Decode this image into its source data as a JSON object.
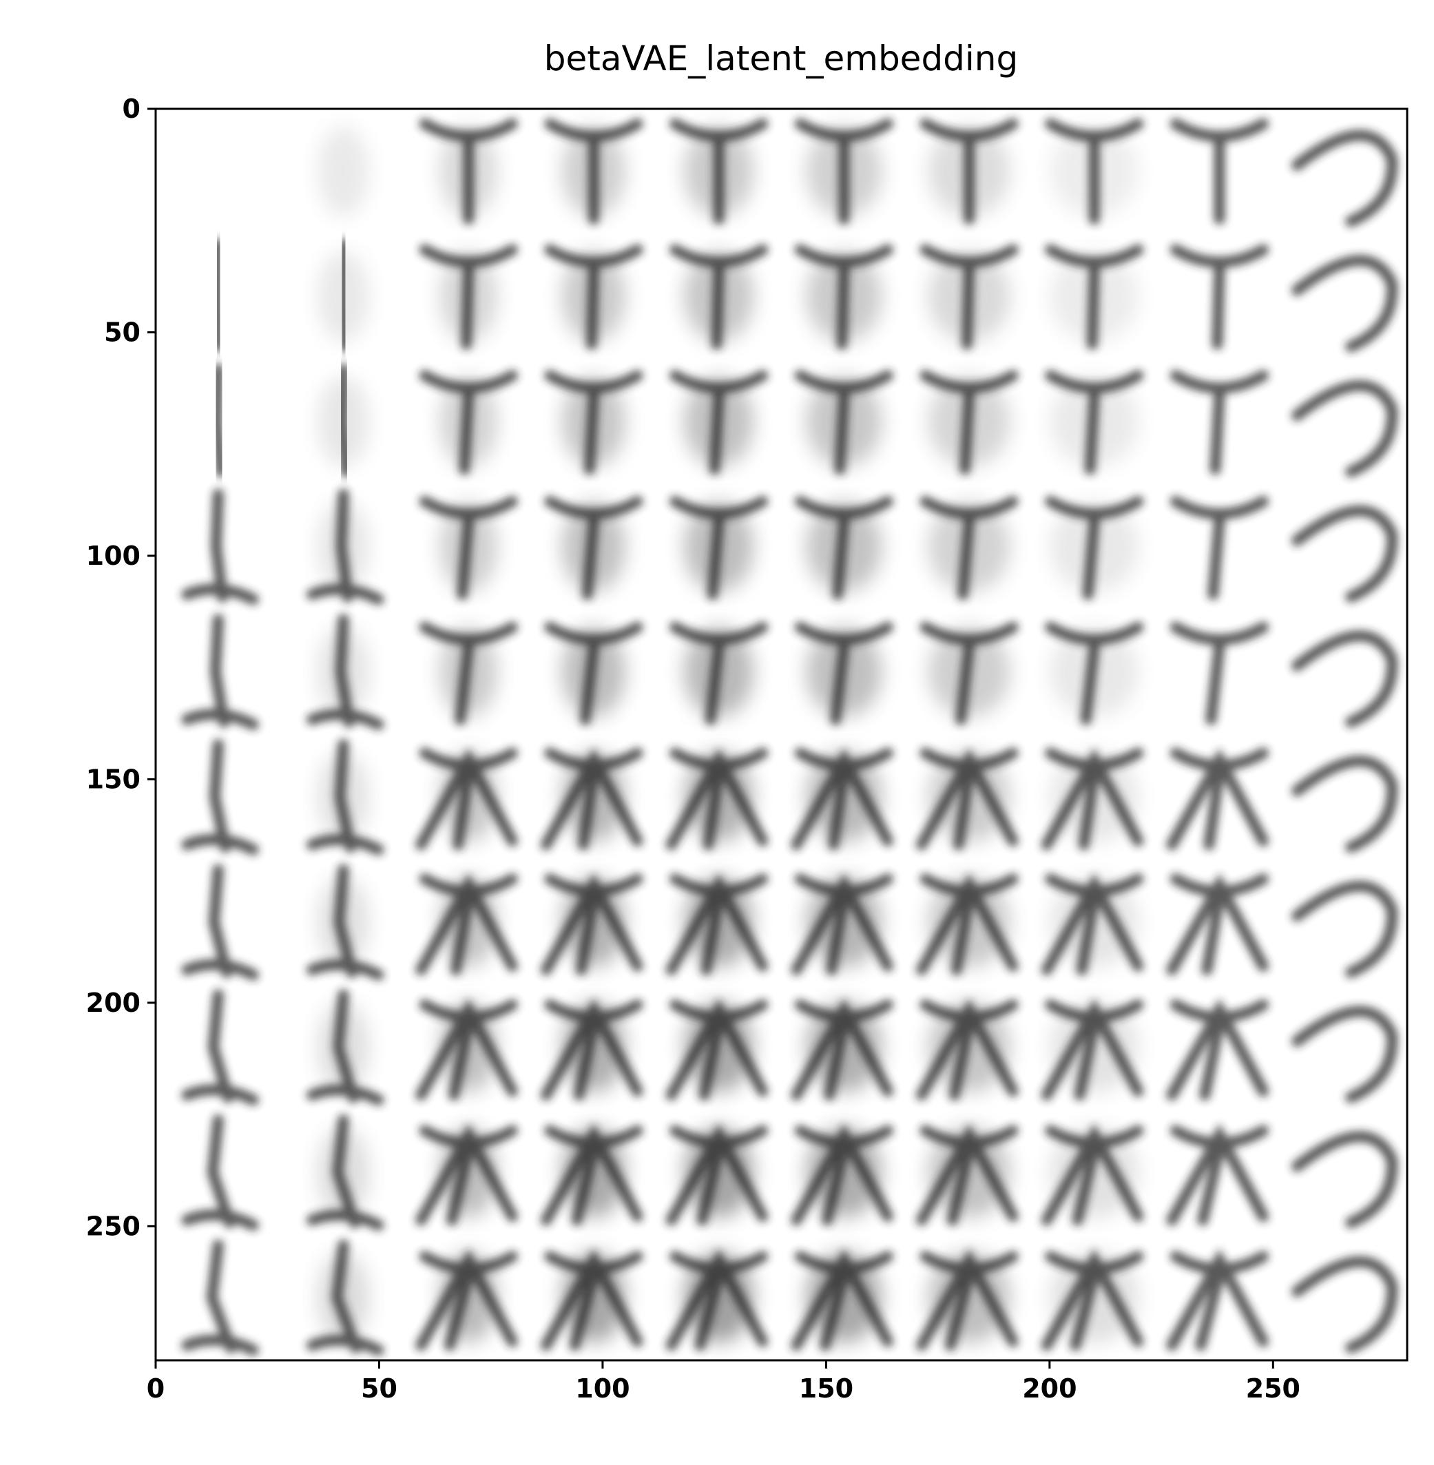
{
  "chart_data": {
    "type": "heatmap",
    "title": "betaVAE_latent_embedding",
    "xlabel": "",
    "ylabel": "",
    "xlim": [
      0,
      280
    ],
    "ylim": [
      280,
      0
    ],
    "x_ticks": [
      0,
      50,
      100,
      150,
      200,
      250
    ],
    "y_ticks": [
      0,
      50,
      100,
      150,
      200,
      250
    ],
    "grid": {
      "rows": 10,
      "cols": 10,
      "tile_size": 28
    },
    "colormap": "gray_r",
    "legend": "none"
  }
}
